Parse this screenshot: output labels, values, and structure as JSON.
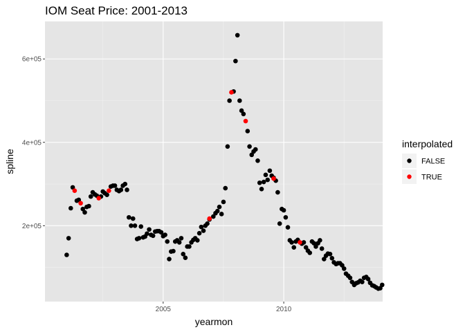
{
  "chart_data": {
    "type": "scatter",
    "title": "IOM Seat Price: 2001-2013",
    "xlabel": "yearmon",
    "ylabel": "spline",
    "xlim": [
      2000.1,
      2014.1
    ],
    "ylim": [
      18000,
      690000
    ],
    "x_ticks": [
      2005,
      2010
    ],
    "x_tick_labels": [
      "2005",
      "2010"
    ],
    "y_ticks": [
      200000,
      400000,
      600000
    ],
    "y_tick_labels": [
      "2e+05",
      "4e+05",
      "6e+05"
    ],
    "grid": true,
    "background": "#e5e5e5",
    "legend": {
      "title": "interpolated",
      "placement": "right",
      "entries": [
        {
          "label": "FALSE",
          "color": "#000000"
        },
        {
          "label": "TRUE",
          "color": "#ff0000"
        }
      ]
    },
    "series": [
      {
        "name": "FALSE",
        "color": "#000000",
        "points": [
          [
            2001.0,
            130000
          ],
          [
            2001.08,
            170000
          ],
          [
            2001.17,
            242000
          ],
          [
            2001.25,
            292000
          ],
          [
            2001.42,
            260000
          ],
          [
            2001.5,
            262000
          ],
          [
            2001.67,
            240000
          ],
          [
            2001.75,
            232000
          ],
          [
            2001.83,
            245000
          ],
          [
            2001.92,
            247000
          ],
          [
            2002.0,
            270000
          ],
          [
            2002.08,
            280000
          ],
          [
            2002.17,
            275000
          ],
          [
            2002.25,
            272000
          ],
          [
            2002.42,
            270000
          ],
          [
            2002.5,
            282000
          ],
          [
            2002.58,
            278000
          ],
          [
            2002.67,
            274000
          ],
          [
            2002.83,
            294000
          ],
          [
            2002.92,
            296000
          ],
          [
            2003.0,
            296000
          ],
          [
            2003.08,
            286000
          ],
          [
            2003.17,
            283000
          ],
          [
            2003.25,
            286000
          ],
          [
            2003.33,
            296000
          ],
          [
            2003.42,
            300000
          ],
          [
            2003.5,
            286000
          ],
          [
            2003.58,
            220000
          ],
          [
            2003.67,
            200000
          ],
          [
            2003.75,
            217000
          ],
          [
            2003.83,
            200000
          ],
          [
            2003.92,
            168000
          ],
          [
            2004.0,
            170000
          ],
          [
            2004.08,
            198000
          ],
          [
            2004.17,
            172000
          ],
          [
            2004.25,
            174000
          ],
          [
            2004.33,
            181000
          ],
          [
            2004.42,
            191000
          ],
          [
            2004.5,
            178000
          ],
          [
            2004.58,
            176000
          ],
          [
            2004.67,
            186000
          ],
          [
            2004.75,
            187000
          ],
          [
            2004.83,
            187000
          ],
          [
            2004.92,
            184000
          ],
          [
            2005.0,
            175000
          ],
          [
            2005.08,
            178000
          ],
          [
            2005.17,
            162000
          ],
          [
            2005.25,
            120000
          ],
          [
            2005.33,
            138000
          ],
          [
            2005.42,
            139000
          ],
          [
            2005.5,
            162000
          ],
          [
            2005.58,
            165000
          ],
          [
            2005.67,
            160000
          ],
          [
            2005.75,
            170000
          ],
          [
            2005.83,
            132000
          ],
          [
            2005.92,
            123000
          ],
          [
            2006.0,
            150000
          ],
          [
            2006.08,
            150000
          ],
          [
            2006.17,
            160000
          ],
          [
            2006.25,
            166000
          ],
          [
            2006.33,
            170000
          ],
          [
            2006.42,
            165000
          ],
          [
            2006.5,
            182000
          ],
          [
            2006.58,
            197000
          ],
          [
            2006.67,
            188000
          ],
          [
            2006.75,
            200000
          ],
          [
            2006.83,
            205000
          ],
          [
            2006.92,
            215000
          ],
          [
            2007.08,
            222000
          ],
          [
            2007.17,
            230000
          ],
          [
            2007.25,
            235000
          ],
          [
            2007.33,
            245000
          ],
          [
            2007.42,
            228000
          ],
          [
            2007.5,
            257000
          ],
          [
            2007.58,
            290000
          ],
          [
            2007.67,
            390000
          ],
          [
            2007.75,
            500000
          ],
          [
            2007.92,
            522000
          ],
          [
            2008.0,
            595000
          ],
          [
            2008.08,
            657000
          ],
          [
            2008.17,
            500000
          ],
          [
            2008.25,
            476000
          ],
          [
            2008.33,
            468000
          ],
          [
            2008.5,
            427000
          ],
          [
            2008.58,
            390000
          ],
          [
            2008.67,
            370000
          ],
          [
            2008.75,
            378000
          ],
          [
            2008.83,
            383000
          ],
          [
            2008.92,
            356000
          ],
          [
            2009.0,
            303000
          ],
          [
            2009.08,
            288000
          ],
          [
            2009.17,
            305000
          ],
          [
            2009.25,
            322000
          ],
          [
            2009.33,
            310000
          ],
          [
            2009.42,
            332000
          ],
          [
            2009.5,
            320000
          ],
          [
            2009.58,
            315000
          ],
          [
            2009.67,
            308000
          ],
          [
            2009.75,
            280000
          ],
          [
            2009.83,
            205000
          ],
          [
            2009.92,
            240000
          ],
          [
            2010.0,
            237000
          ],
          [
            2010.08,
            220000
          ],
          [
            2010.17,
            196000
          ],
          [
            2010.25,
            165000
          ],
          [
            2010.33,
            160000
          ],
          [
            2010.42,
            148000
          ],
          [
            2010.5,
            162000
          ],
          [
            2010.58,
            166000
          ],
          [
            2010.75,
            157000
          ],
          [
            2010.83,
            160000
          ],
          [
            2010.92,
            148000
          ],
          [
            2011.0,
            140000
          ],
          [
            2011.08,
            135000
          ],
          [
            2011.17,
            162000
          ],
          [
            2011.25,
            158000
          ],
          [
            2011.33,
            150000
          ],
          [
            2011.42,
            158000
          ],
          [
            2011.5,
            165000
          ],
          [
            2011.58,
            145000
          ],
          [
            2011.67,
            120000
          ],
          [
            2011.75,
            128000
          ],
          [
            2011.83,
            133000
          ],
          [
            2011.92,
            132000
          ],
          [
            2012.0,
            122000
          ],
          [
            2012.08,
            112000
          ],
          [
            2012.17,
            108000
          ],
          [
            2012.25,
            110000
          ],
          [
            2012.33,
            110000
          ],
          [
            2012.42,
            105000
          ],
          [
            2012.5,
            97000
          ],
          [
            2012.58,
            85000
          ],
          [
            2012.67,
            80000
          ],
          [
            2012.75,
            75000
          ],
          [
            2012.83,
            65000
          ],
          [
            2012.92,
            58000
          ],
          [
            2013.0,
            62000
          ],
          [
            2013.08,
            64000
          ],
          [
            2013.17,
            68000
          ],
          [
            2013.25,
            65000
          ],
          [
            2013.33,
            75000
          ],
          [
            2013.42,
            77000
          ],
          [
            2013.5,
            72000
          ],
          [
            2013.58,
            63000
          ],
          [
            2013.67,
            57000
          ],
          [
            2013.75,
            55000
          ],
          [
            2013.83,
            52000
          ],
          [
            2013.92,
            49000
          ],
          [
            2014.0,
            50000
          ],
          [
            2014.08,
            58000
          ]
        ]
      },
      {
        "name": "TRUE",
        "color": "#ff0000",
        "points": [
          [
            2001.33,
            284000
          ],
          [
            2001.58,
            254000
          ],
          [
            2002.33,
            266000
          ],
          [
            2002.75,
            284000
          ],
          [
            2006.92,
            217000
          ],
          [
            2007.83,
            520000
          ],
          [
            2008.42,
            451000
          ],
          [
            2009.58,
            313000
          ],
          [
            2010.67,
            160000
          ]
        ]
      }
    ]
  }
}
